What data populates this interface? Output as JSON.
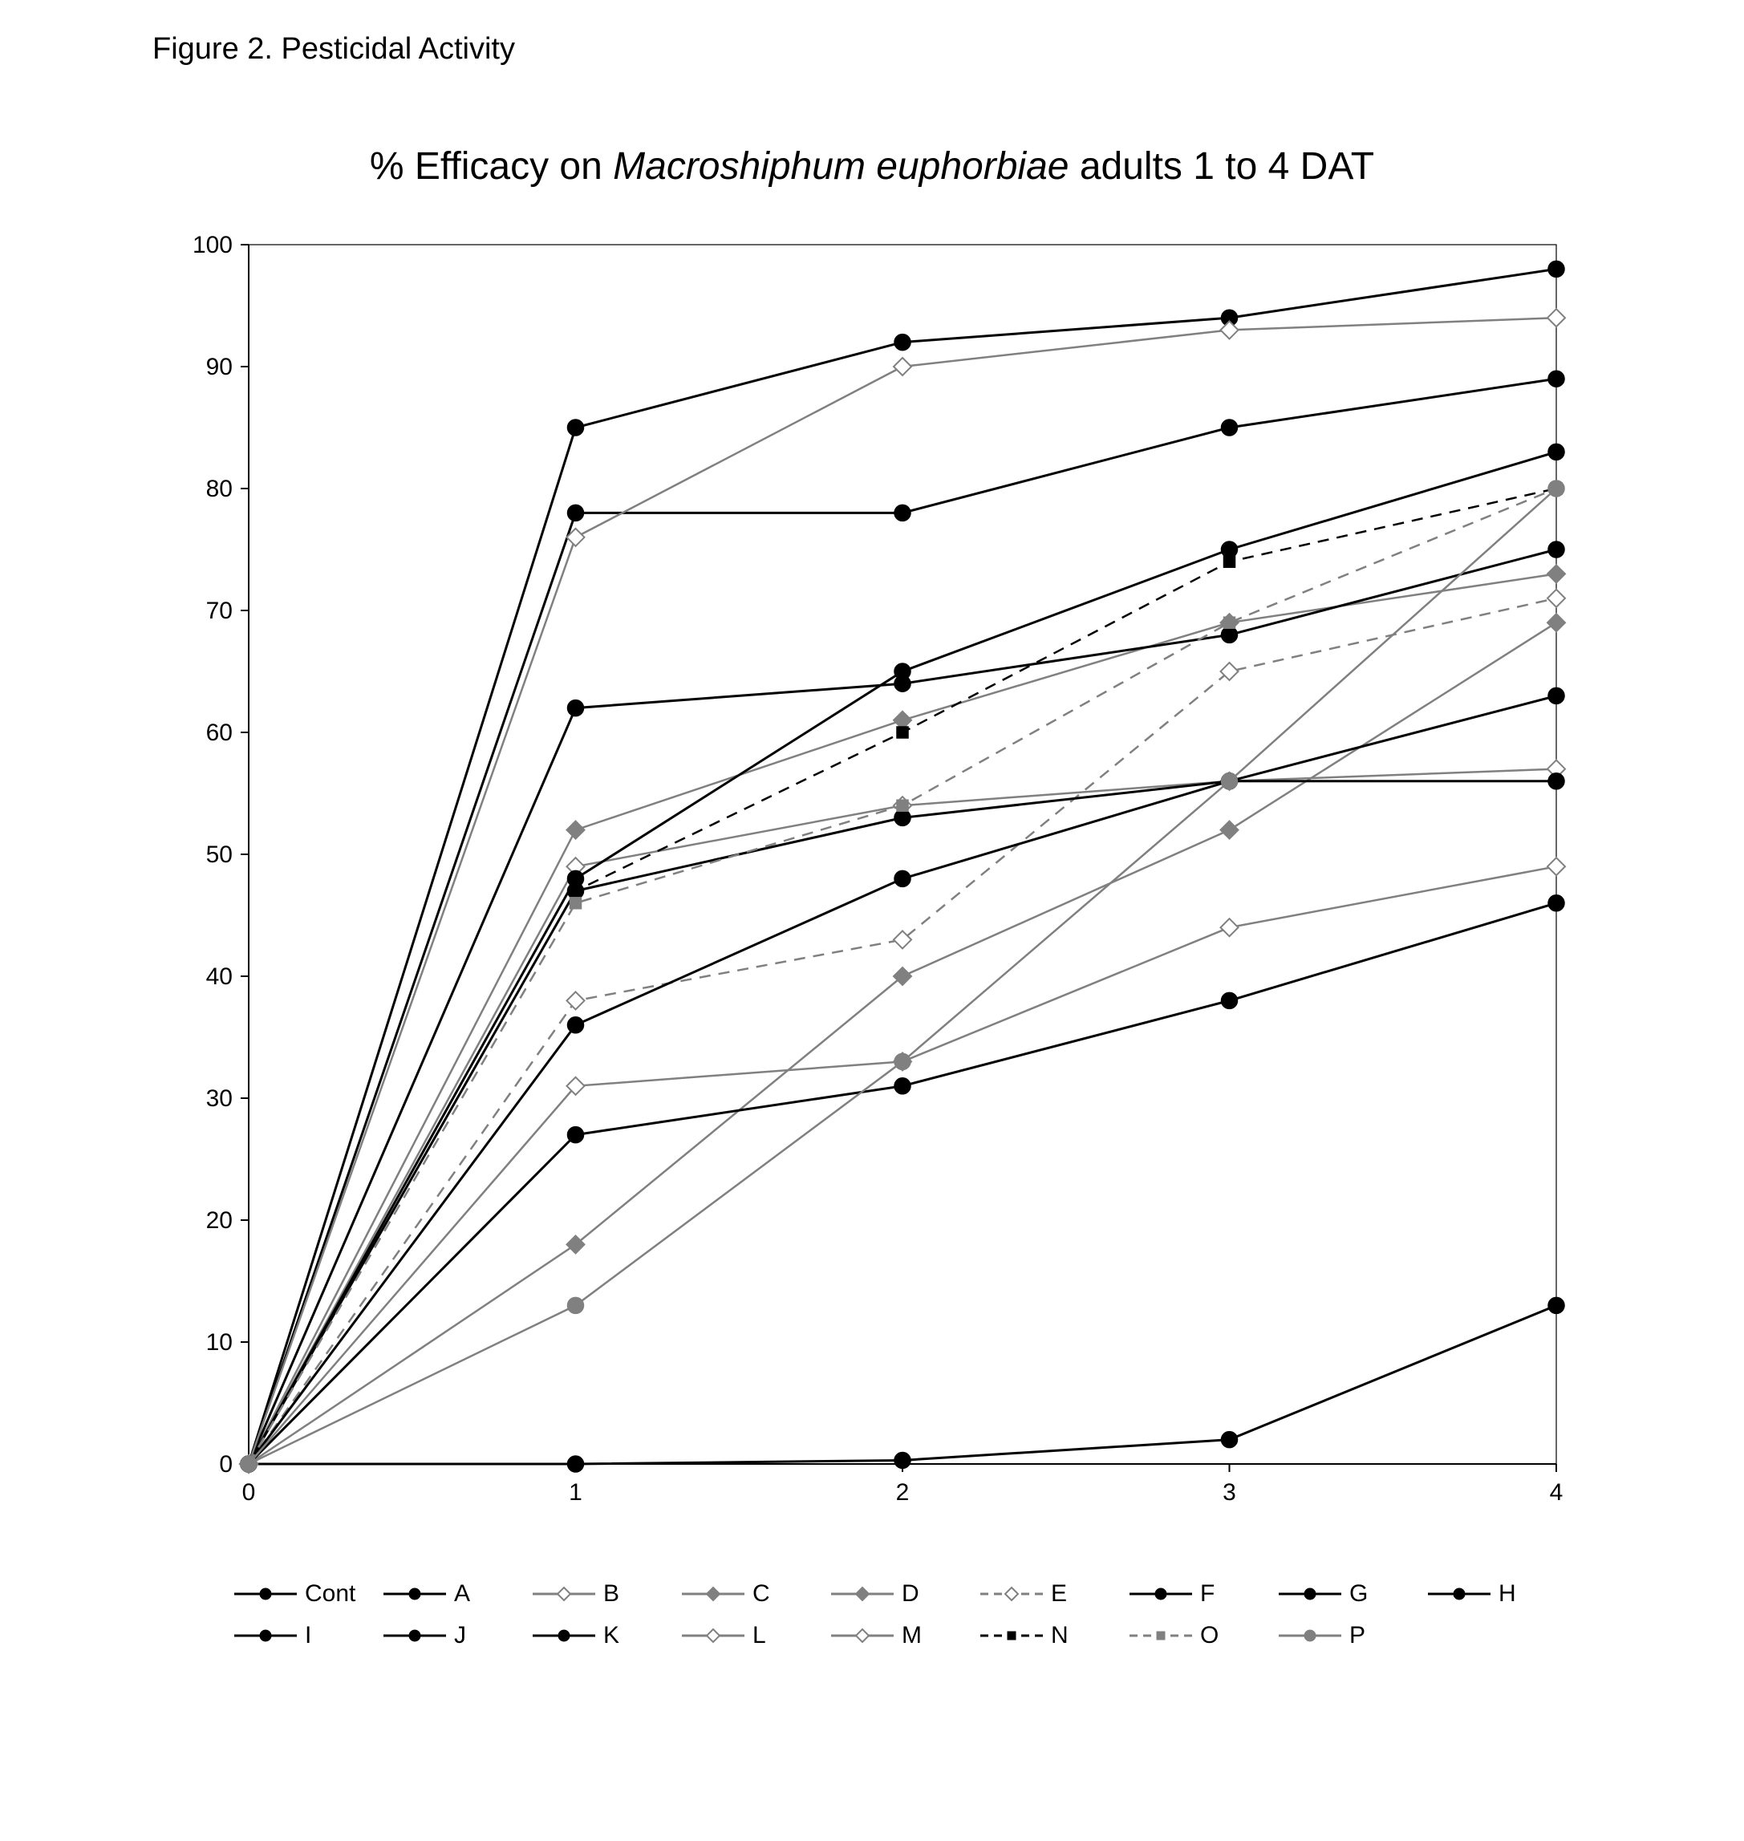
{
  "figure": {
    "caption": "Figure 2. Pesticidal Activity",
    "title_prefix": "% Efficacy on ",
    "title_italic": "Macroshiphum euphorbiae",
    "title_suffix": " adults 1 to 4 DAT",
    "caption_fontsize": 38,
    "title_fontsize": 48,
    "background_color": "#ffffff"
  },
  "chart": {
    "type": "line",
    "xlim": [
      0,
      4
    ],
    "ylim": [
      0,
      100
    ],
    "x_ticks": [
      0,
      1,
      2,
      3,
      4
    ],
    "y_ticks": [
      0,
      10,
      20,
      30,
      40,
      50,
      60,
      70,
      80,
      90,
      100
    ],
    "x_labels": [
      "0",
      "1",
      "2",
      "3",
      "4"
    ],
    "y_labels": [
      "0",
      "10",
      "20",
      "30",
      "40",
      "50",
      "60",
      "70",
      "80",
      "90",
      "100"
    ],
    "axis_color": "#000000",
    "axis_width": 2,
    "tick_fontsize": 30,
    "tick_color": "#000000",
    "grid": false,
    "plot_border": true,
    "aspect_w": 1790,
    "aspect_h": 1630,
    "series": [
      {
        "id": "Cont",
        "label": "Cont",
        "color": "#000000",
        "line_width": 3.0,
        "dash": "none",
        "marker": "filled-circle",
        "marker_size": 10,
        "marker_fill": "#000000",
        "marker_stroke": "#000000",
        "y": [
          0,
          0,
          0.3,
          2,
          13
        ]
      },
      {
        "id": "A",
        "label": "A",
        "color": "#000000",
        "line_width": 3.0,
        "dash": "none",
        "marker": "filled-circle",
        "marker_size": 10,
        "marker_fill": "#000000",
        "marker_stroke": "#000000",
        "y": [
          0,
          78,
          78,
          85,
          89
        ]
      },
      {
        "id": "B",
        "label": "B",
        "color": "#808080",
        "line_width": 2.5,
        "dash": "none",
        "marker": "open-diamond",
        "marker_size": 11,
        "marker_fill": "#ffffff",
        "marker_stroke": "#808080",
        "y": [
          0,
          49,
          54,
          56,
          57
        ]
      },
      {
        "id": "C",
        "label": "C",
        "color": "#808080",
        "line_width": 2.5,
        "dash": "none",
        "marker": "filled-diamond",
        "marker_size": 11,
        "marker_fill": "#808080",
        "marker_stroke": "#808080",
        "y": [
          0,
          52,
          61,
          69,
          73
        ]
      },
      {
        "id": "D",
        "label": "D",
        "color": "#808080",
        "line_width": 2.5,
        "dash": "none",
        "marker": "filled-diamond",
        "marker_size": 11,
        "marker_fill": "#808080",
        "marker_stroke": "#808080",
        "y": [
          0,
          18,
          40,
          52,
          69
        ]
      },
      {
        "id": "E",
        "label": "E",
        "color": "#808080",
        "line_width": 2.5,
        "dash": "dash",
        "marker": "open-diamond",
        "marker_size": 11,
        "marker_fill": "#ffffff",
        "marker_stroke": "#808080",
        "y": [
          0,
          38,
          43,
          65,
          71
        ]
      },
      {
        "id": "F",
        "label": "F",
        "color": "#000000",
        "line_width": 3.0,
        "dash": "none",
        "marker": "filled-circle",
        "marker_size": 10,
        "marker_fill": "#000000",
        "marker_stroke": "#000000",
        "y": [
          0,
          62,
          64,
          68,
          75
        ]
      },
      {
        "id": "G",
        "label": "G",
        "color": "#000000",
        "line_width": 3.0,
        "dash": "none",
        "marker": "filled-circle",
        "marker_size": 10,
        "marker_fill": "#000000",
        "marker_stroke": "#000000",
        "y": [
          0,
          48,
          65,
          75,
          83
        ]
      },
      {
        "id": "H",
        "label": "H",
        "color": "#000000",
        "line_width": 3.0,
        "dash": "none",
        "marker": "filled-circle",
        "marker_size": 10,
        "marker_fill": "#000000",
        "marker_stroke": "#000000",
        "y": [
          0,
          85,
          92,
          94,
          98
        ]
      },
      {
        "id": "I",
        "label": "I",
        "color": "#000000",
        "line_width": 3.0,
        "dash": "none",
        "marker": "filled-circle",
        "marker_size": 10,
        "marker_fill": "#000000",
        "marker_stroke": "#000000",
        "y": [
          0,
          36,
          48,
          56,
          56
        ]
      },
      {
        "id": "J",
        "label": "J",
        "color": "#000000",
        "line_width": 3.0,
        "dash": "none",
        "marker": "filled-circle",
        "marker_size": 10,
        "marker_fill": "#000000",
        "marker_stroke": "#000000",
        "y": [
          0,
          47,
          53,
          56,
          63
        ]
      },
      {
        "id": "K",
        "label": "K",
        "color": "#000000",
        "line_width": 3.0,
        "dash": "none",
        "marker": "filled-circle",
        "marker_size": 10,
        "marker_fill": "#000000",
        "marker_stroke": "#000000",
        "y": [
          0,
          27,
          31,
          38,
          46
        ]
      },
      {
        "id": "L",
        "label": "L",
        "color": "#808080",
        "line_width": 2.5,
        "dash": "none",
        "marker": "open-diamond",
        "marker_size": 11,
        "marker_fill": "#ffffff",
        "marker_stroke": "#808080",
        "y": [
          0,
          31,
          33,
          44,
          49
        ]
      },
      {
        "id": "M",
        "label": "M",
        "color": "#808080",
        "line_width": 2.5,
        "dash": "none",
        "marker": "open-diamond",
        "marker_size": 11,
        "marker_fill": "#ffffff",
        "marker_stroke": "#808080",
        "y": [
          0,
          76,
          90,
          93,
          94
        ]
      },
      {
        "id": "N",
        "label": "N",
        "color": "#000000",
        "line_width": 2.5,
        "dash": "dash",
        "marker": "small-square",
        "marker_size": 7,
        "marker_fill": "#000000",
        "marker_stroke": "#000000",
        "y": [
          0,
          47,
          60,
          74,
          80
        ]
      },
      {
        "id": "O",
        "label": "O",
        "color": "#808080",
        "line_width": 2.5,
        "dash": "dash",
        "marker": "small-square",
        "marker_size": 7,
        "marker_fill": "#808080",
        "marker_stroke": "#808080",
        "y": [
          0,
          46,
          54,
          69,
          80
        ]
      },
      {
        "id": "P",
        "label": "P",
        "color": "#808080",
        "line_width": 2.5,
        "dash": "none",
        "marker": "filled-circle",
        "marker_size": 10,
        "marker_fill": "#808080",
        "marker_stroke": "#808080",
        "y": [
          0,
          13,
          33,
          56,
          80
        ]
      }
    ],
    "x": [
      0,
      1,
      2,
      3,
      4
    ],
    "legend_rows": [
      [
        "Cont",
        "A",
        "B",
        "C",
        "D",
        "E",
        "F",
        "G",
        "H"
      ],
      [
        "I",
        "J",
        "K",
        "L",
        "M",
        "N",
        "O",
        "P"
      ]
    ]
  }
}
